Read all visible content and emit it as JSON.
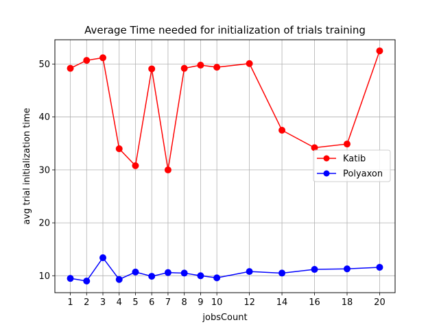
{
  "chart_data": {
    "type": "line",
    "title": "Average Time needed for initialization of  trials training",
    "xlabel": "jobsCount",
    "ylabel": "avg trial initialization time",
    "x": [
      1,
      2,
      3,
      4,
      5,
      6,
      7,
      8,
      9,
      10,
      12,
      14,
      16,
      18,
      20
    ],
    "xticks": [
      1,
      2,
      3,
      4,
      5,
      6,
      7,
      8,
      9,
      10,
      12,
      14,
      16,
      18,
      20
    ],
    "yticks": [
      10,
      20,
      30,
      40,
      50
    ],
    "xlim": [
      0.05,
      20.95
    ],
    "ylim": [
      6.8,
      54.6
    ],
    "grid": true,
    "legend_position": "center-right",
    "series": [
      {
        "name": "Katib",
        "color": "#ff0000",
        "values": [
          49.2,
          50.7,
          51.2,
          34.0,
          30.8,
          49.1,
          30.0,
          49.2,
          49.8,
          49.4,
          50.1,
          37.5,
          34.2,
          34.9,
          52.5
        ]
      },
      {
        "name": "Polyaxon",
        "color": "#0000ff",
        "values": [
          9.5,
          9.0,
          13.4,
          9.3,
          10.7,
          9.9,
          10.6,
          10.5,
          10.0,
          9.6,
          10.8,
          10.5,
          11.2,
          11.3,
          11.6
        ]
      }
    ]
  }
}
